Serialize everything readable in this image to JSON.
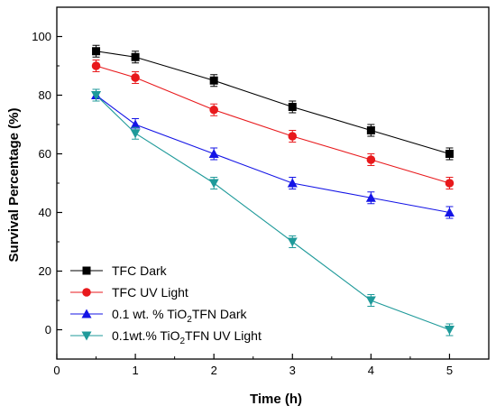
{
  "chart_data": {
    "type": "line",
    "xlabel": "Time (h)",
    "ylabel": "Survival Percentage (%)",
    "xlim": [
      0,
      5.5
    ],
    "ylim": [
      -10,
      110
    ],
    "xticks": [
      0,
      1,
      2,
      3,
      4,
      5
    ],
    "yticks": [
      0,
      20,
      40,
      60,
      80,
      100
    ],
    "grid": false,
    "legend_position": "bottom-left",
    "x": [
      0.5,
      1,
      2,
      3,
      4,
      5
    ],
    "series": [
      {
        "name": "TFC Dark",
        "legend_parts": [
          "TFC Dark"
        ],
        "color": "#000000",
        "marker": "square",
        "values": [
          95,
          93,
          85,
          76,
          68,
          60
        ],
        "errors": [
          2,
          2,
          2,
          2,
          2,
          2
        ]
      },
      {
        "name": "TFC UV Light",
        "legend_parts": [
          "TFC UV Light"
        ],
        "color": "#e8191c",
        "marker": "circle",
        "values": [
          90,
          86,
          75,
          66,
          58,
          50
        ],
        "errors": [
          2,
          2,
          2,
          2,
          2,
          2
        ]
      },
      {
        "name": "0.1 wt. % TiO2TFN Dark",
        "legend_parts": [
          "0.1 wt. % TiO",
          "2",
          "TFN Dark"
        ],
        "color": "#1414e6",
        "marker": "triangle-up",
        "values": [
          80,
          70,
          60,
          50,
          45,
          40
        ],
        "errors": [
          2,
          2,
          2,
          2,
          2,
          2
        ]
      },
      {
        "name": "0.1wt.% TiO2TFN UV Light",
        "legend_parts": [
          "0.1wt.% TiO",
          "2",
          "TFN UV Light"
        ],
        "color": "#1f9a9a",
        "marker": "triangle-down",
        "values": [
          80,
          67,
          50,
          30,
          10,
          0
        ],
        "errors": [
          2,
          2,
          2,
          2,
          2,
          2
        ]
      }
    ]
  }
}
